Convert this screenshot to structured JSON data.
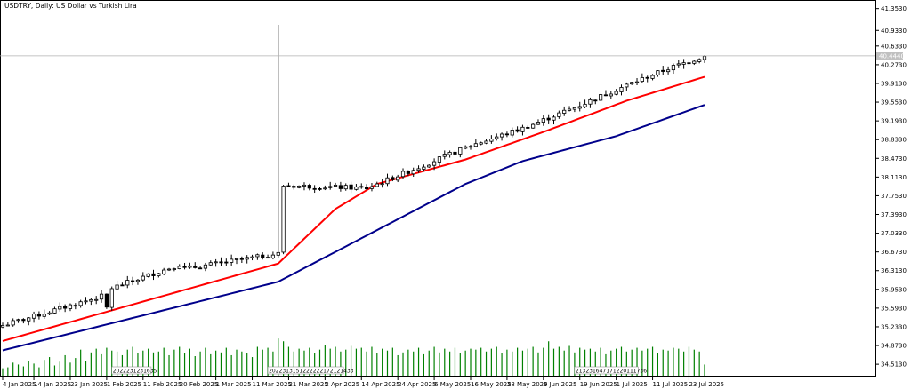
{
  "chart_data": {
    "type": "candlestick",
    "title": "USDTRY, Daily:  US Dollar vs Turkish Lira",
    "current_price_label": "40.4440",
    "ylim": [
      34.31,
      41.45
    ],
    "y_ticks": [
      41.353,
      40.933,
      40.633,
      40.273,
      39.913,
      39.553,
      39.193,
      38.833,
      38.473,
      38.113,
      37.753,
      37.393,
      37.033,
      36.673,
      36.313,
      35.953,
      35.593,
      35.233,
      34.873,
      34.513
    ],
    "y_tick_labels": [
      "41.3530",
      "40.9330",
      "40.6330",
      "40.2730",
      "39.9130",
      "39.5530",
      "39.1930",
      "38.8330",
      "38.4730",
      "38.1130",
      "37.7530",
      "37.3930",
      "37.0330",
      "36.6730",
      "36.3130",
      "35.9530",
      "35.5930",
      "35.2330",
      "34.8730",
      "34.5130"
    ],
    "x_tick_labels": [
      {
        "label": "4 Jan 2025",
        "bar": 0
      },
      {
        "label": "14 Jan 2025",
        "bar": 6
      },
      {
        "label": "23 Jan 2025",
        "bar": 13
      },
      {
        "label": "1 Feb 2025",
        "bar": 20
      },
      {
        "label": "11 Feb 2025",
        "bar": 27
      },
      {
        "label": "20 Feb 2025",
        "bar": 34
      },
      {
        "label": "1 Mar 2025",
        "bar": 41
      },
      {
        "label": "11 Mar 2025",
        "bar": 48
      },
      {
        "label": "21 Mar 2025",
        "bar": 55
      },
      {
        "label": "2 Apr 2025",
        "bar": 62
      },
      {
        "label": "14 Apr 2025",
        "bar": 69
      },
      {
        "label": "24 Apr 2025",
        "bar": 76
      },
      {
        "label": "6 May 2025",
        "bar": 83
      },
      {
        "label": "16 May 2025",
        "bar": 90
      },
      {
        "label": "28 May 2025",
        "bar": 97
      },
      {
        "label": "9 Jun 2025",
        "bar": 104
      },
      {
        "label": "19 Jun 2025",
        "bar": 111
      },
      {
        "label": "1 Jul 2025",
        "bar": 118
      },
      {
        "label": "11 Jul 2025",
        "bar": 125
      },
      {
        "label": "23 Jul 2025",
        "bar": 132
      }
    ],
    "bar_count": 136,
    "ohlc_knots": [
      [
        0,
        35.26
      ],
      [
        19,
        35.82
      ],
      [
        20,
        35.6
      ],
      [
        21,
        35.98
      ],
      [
        34,
        36.43
      ],
      [
        35,
        36.35
      ],
      [
        53,
        36.64
      ],
      [
        54,
        37.95
      ],
      [
        70,
        37.9
      ],
      [
        80,
        38.3
      ],
      [
        90,
        38.72
      ],
      [
        100,
        39.05
      ],
      [
        110,
        39.45
      ],
      [
        120,
        39.88
      ],
      [
        128,
        40.2
      ],
      [
        135,
        40.44
      ]
    ],
    "spike_bar": {
      "bar": 53,
      "high": 41.04
    },
    "ma_fast": {
      "color": "#ff0000",
      "knots": [
        [
          0,
          34.96
        ],
        [
          53,
          36.45
        ],
        [
          64,
          37.5
        ],
        [
          72,
          37.98
        ],
        [
          89,
          38.45
        ],
        [
          104,
          38.98
        ],
        [
          120,
          39.58
        ],
        [
          135,
          40.04
        ]
      ]
    },
    "ma_slow": {
      "color": "#00008b",
      "knots": [
        [
          0,
          34.78
        ],
        [
          53,
          36.1
        ],
        [
          89,
          37.98
        ],
        [
          100,
          38.42
        ],
        [
          118,
          38.9
        ],
        [
          135,
          39.5
        ]
      ]
    },
    "volume": {
      "color": "#008000",
      "values": [
        8,
        9,
        14,
        12,
        10,
        16,
        13,
        9,
        17,
        20,
        11,
        15,
        22,
        14,
        19,
        28,
        16,
        25,
        29,
        23,
        30,
        27,
        26,
        22,
        28,
        31,
        24,
        27,
        29,
        25,
        26,
        30,
        22,
        28,
        31,
        24,
        29,
        21,
        26,
        30,
        23,
        27,
        25,
        30,
        22,
        28,
        26,
        24,
        20,
        31,
        28,
        30,
        26,
        40,
        37,
        31,
        26,
        29,
        27,
        30,
        24,
        28,
        33,
        29,
        31,
        26,
        28,
        32,
        29,
        30,
        26,
        31,
        24,
        29,
        27,
        30,
        22,
        25,
        28,
        26,
        30,
        23,
        27,
        31,
        25,
        29,
        26,
        30,
        24,
        27,
        29,
        28,
        30,
        26,
        29,
        31,
        24,
        28,
        26,
        30,
        27,
        29,
        31,
        25,
        30,
        37,
        29,
        31,
        27,
        32,
        25,
        30,
        28,
        29,
        26,
        30,
        23,
        27,
        29,
        31,
        26,
        28,
        30,
        27,
        29,
        31,
        24,
        28,
        27,
        30,
        29,
        26,
        31,
        28,
        26,
        12
      ],
      "ylim": [
        0,
        42
      ]
    },
    "session_markers": [
      {
        "bar": 21,
        "text": "2022231231635"
      },
      {
        "bar": 51,
        "text": "2022313151222222172121433"
      },
      {
        "bar": 110,
        "text": "213231647171220111736"
      }
    ],
    "grid": false,
    "legend": "none"
  }
}
